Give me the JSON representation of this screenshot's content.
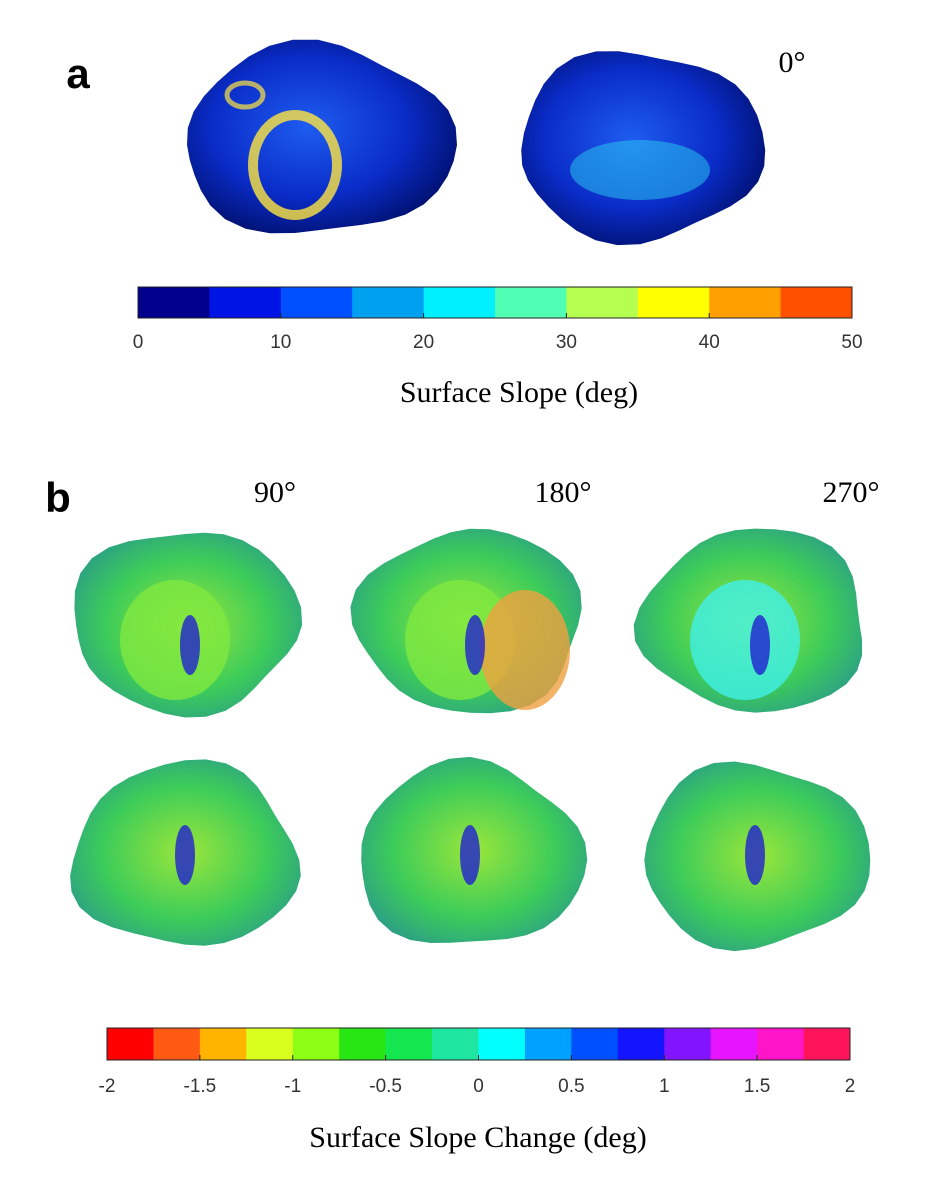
{
  "panels": [
    {
      "label": "a",
      "angles": [
        "0°"
      ],
      "colorbar": {
        "label": "Surface Slope (deg)",
        "lim": [
          0,
          50
        ],
        "ticks": [
          0,
          10,
          20,
          30,
          40,
          50
        ],
        "colors": [
          "#00008c",
          "#0014e6",
          "#0050ff",
          "#00a0f0",
          "#00f0ff",
          "#50ffb4",
          "#b4ff50",
          "#ffff00",
          "#ffa000",
          "#ff5000"
        ]
      }
    },
    {
      "label": "b",
      "angles": [
        "90°",
        "180°",
        "270°"
      ],
      "colorbar": {
        "label": "Surface Slope Change (deg)",
        "lim": [
          -2,
          2
        ],
        "ticks": [
          -2,
          -1.5,
          -1,
          -0.5,
          0,
          0.5,
          1,
          1.5,
          2
        ],
        "colors": [
          "#ff0000",
          "#ff5a14",
          "#ffb400",
          "#d9ff1e",
          "#8cff14",
          "#28e614",
          "#14e650",
          "#1ee6a0",
          "#00ffff",
          "#00a0ff",
          "#0050ff",
          "#1414ff",
          "#8214ff",
          "#e614ff",
          "#ff14c8",
          "#ff145a"
        ]
      }
    }
  ]
}
